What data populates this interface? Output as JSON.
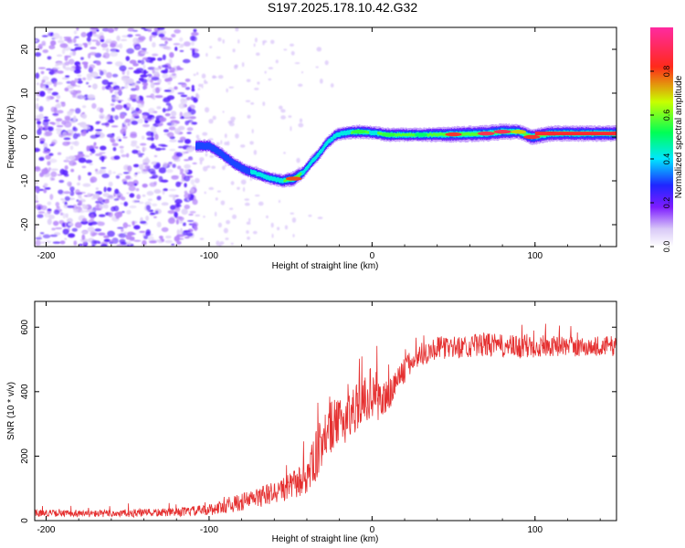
{
  "title": "S197.2025.178.10.42.G32",
  "colors": {
    "snr_line": "#e53030",
    "wave_cloud": "#7b2cf0",
    "colormap": [
      "#ffffff",
      "#c9b8f4",
      "#7d1cff",
      "#1f26ff",
      "#00e7ff",
      "#00ff55",
      "#c8ff00",
      "#ff2a1a",
      "#ff2aa0"
    ]
  },
  "chart_data": [
    {
      "type": "heatmap",
      "xlabel": "Height of straight line (km)",
      "ylabel": "Frequency (Hz)",
      "xlim": [
        -207,
        150
      ],
      "ylim": [
        -25,
        25
      ],
      "xticks": [
        -200,
        -100,
        0,
        100
      ],
      "yticks": [
        -20,
        -10,
        0,
        10,
        20
      ],
      "grid": false,
      "colorbar": {
        "label": "Normalized spectral amplitude",
        "ticks": [
          "0.0",
          "0.2",
          "0.4",
          "0.6",
          "0.8"
        ],
        "range": [
          0,
          1
        ]
      },
      "ridge": {
        "x": [
          -108,
          -100,
          -92,
          -85,
          -78,
          -70,
          -62,
          -55,
          -48,
          -42,
          -38,
          -33,
          -28,
          -22,
          -15,
          -8,
          0,
          10,
          30,
          50,
          70,
          80,
          90,
          98,
          110,
          150
        ],
        "y": [
          -2,
          -2,
          -4,
          -6,
          -7.5,
          -8.5,
          -9.5,
          -10,
          -9.5,
          -8,
          -6,
          -4,
          -1.5,
          0.5,
          1,
          1.2,
          1,
          0.5,
          0.5,
          0.6,
          0.8,
          1.2,
          1.2,
          0,
          0.8,
          0.8
        ],
        "amplitude": [
          0.3,
          0.3,
          0.3,
          0.3,
          0.3,
          0.35,
          0.35,
          0.45,
          0.8,
          0.35,
          0.35,
          0.4,
          0.4,
          0.4,
          0.45,
          0.55,
          0.45,
          0.55,
          0.5,
          0.85,
          0.9,
          0.9,
          0.7,
          0.85,
          0.85,
          0.85
        ]
      },
      "noise_region": {
        "x": [
          -207,
          -108
        ],
        "amplitude": 0.25
      }
    },
    {
      "type": "line",
      "xlabel": "Height of straight line (km)",
      "ylabel": "SNR (10 * v/v)",
      "xlim": [
        -207,
        150
      ],
      "ylim": [
        0,
        680
      ],
      "xticks": [
        -200,
        -100,
        0,
        100
      ],
      "yticks": [
        0,
        200,
        400,
        600
      ],
      "grid": false,
      "series": [
        {
          "envelope_x": [
            -207,
            -180,
            -150,
            -120,
            -100,
            -80,
            -60,
            -50,
            -40,
            -35,
            -30,
            -25,
            -20,
            -15,
            -10,
            -5,
            0,
            5,
            10,
            15,
            20,
            25,
            30,
            40,
            50,
            60,
            70,
            80,
            90,
            100,
            110,
            120,
            130,
            140,
            150
          ],
          "envelope_mean": [
            25,
            22,
            24,
            27,
            35,
            60,
            90,
            110,
            140,
            200,
            260,
            300,
            310,
            330,
            360,
            380,
            410,
            380,
            390,
            440,
            470,
            500,
            520,
            540,
            540,
            545,
            550,
            545,
            540,
            550,
            545,
            545,
            540,
            545,
            545
          ],
          "envelope_spread": [
            15,
            15,
            18,
            18,
            25,
            40,
            50,
            60,
            80,
            110,
            120,
            120,
            100,
            110,
            110,
            100,
            120,
            100,
            80,
            70,
            60,
            55,
            55,
            50,
            50,
            50,
            55,
            50,
            55,
            60,
            45,
            45,
            45,
            45,
            45
          ]
        }
      ]
    }
  ]
}
